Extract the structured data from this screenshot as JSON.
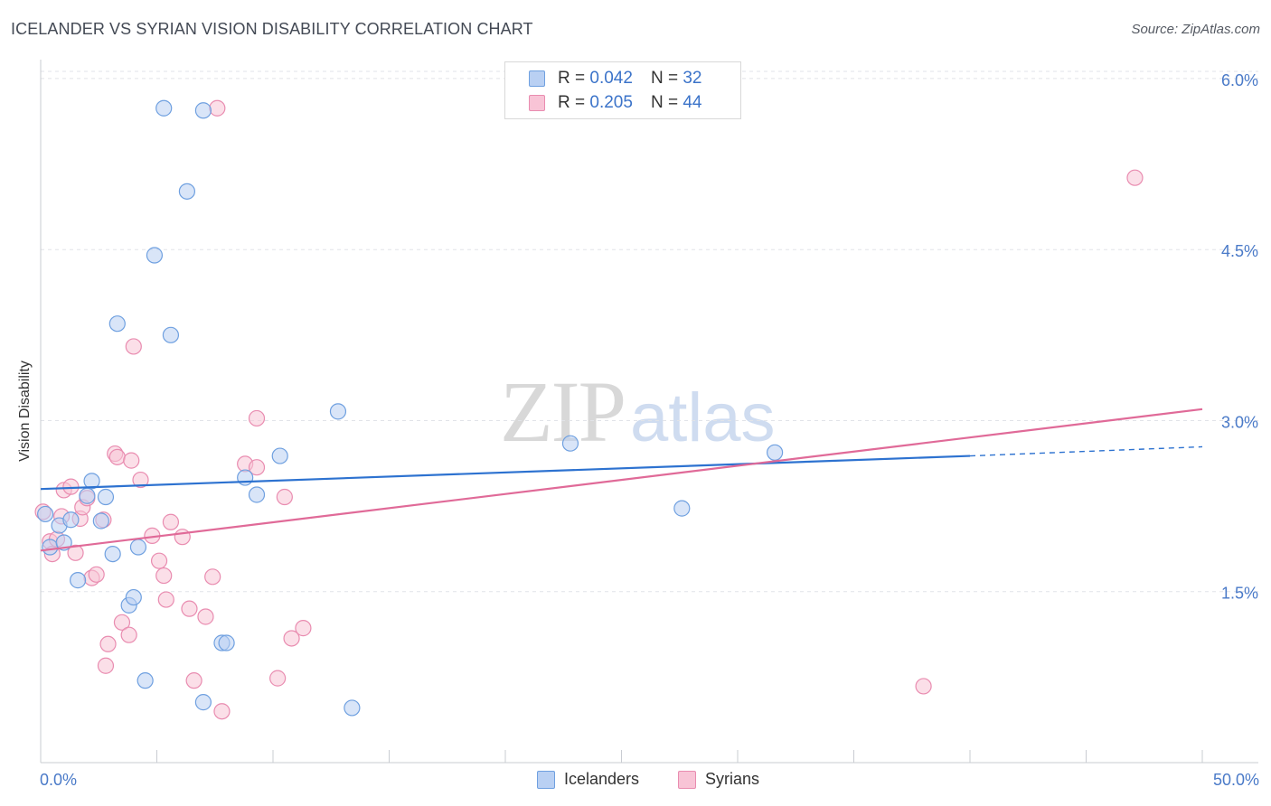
{
  "chart_data": {
    "type": "scatter",
    "title": "ICELANDER VS SYRIAN VISION DISABILITY CORRELATION CHART",
    "source": "Source: ZipAtlas.com",
    "xlabel": "",
    "ylabel": "Vision Disability",
    "xlim": [
      0,
      50
    ],
    "ylim": [
      0,
      6.15
    ],
    "x_tick_labels": [
      "0.0%",
      "50.0%"
    ],
    "y_ticks": [
      1.5,
      3.0,
      4.5,
      6.0
    ],
    "y_tick_labels": [
      "1.5%",
      "3.0%",
      "4.5%",
      "6.0%"
    ],
    "grid": true,
    "watermark": {
      "zip": "ZIP",
      "atlas": "atlas"
    },
    "legend": {
      "rows": [
        {
          "r_label": "R =",
          "r_value": "0.042",
          "n_label": "N =",
          "n_value": "32"
        },
        {
          "r_label": "R =",
          "r_value": "0.205",
          "n_label": "N =",
          "n_value": "44"
        }
      ]
    },
    "series": [
      {
        "name": "Icelanders",
        "color": "#6fa0e0",
        "fill": "#b9d0f3",
        "line_color": "#2d72d0",
        "trend": {
          "x0": 0,
          "y0": 2.4,
          "x1": 40,
          "y1": 2.69,
          "dashed_to_x": 50,
          "dashed_to_y": 2.77
        },
        "points": [
          [
            0.2,
            2.18
          ],
          [
            0.4,
            1.89
          ],
          [
            0.8,
            2.08
          ],
          [
            1.0,
            1.93
          ],
          [
            1.3,
            2.13
          ],
          [
            1.6,
            1.6
          ],
          [
            2.0,
            2.34
          ],
          [
            2.2,
            2.47
          ],
          [
            2.6,
            2.12
          ],
          [
            2.8,
            2.33
          ],
          [
            3.1,
            1.83
          ],
          [
            3.3,
            3.85
          ],
          [
            3.8,
            1.38
          ],
          [
            4.0,
            1.45
          ],
          [
            4.2,
            1.89
          ],
          [
            4.5,
            0.72
          ],
          [
            4.9,
            4.45
          ],
          [
            5.3,
            5.74
          ],
          [
            5.6,
            3.75
          ],
          [
            6.3,
            5.01
          ],
          [
            7.0,
            5.72
          ],
          [
            7.0,
            0.53
          ],
          [
            7.8,
            1.05
          ],
          [
            8.0,
            1.05
          ],
          [
            8.8,
            2.5
          ],
          [
            9.3,
            2.35
          ],
          [
            10.3,
            2.69
          ],
          [
            12.8,
            3.08
          ],
          [
            13.4,
            0.48
          ],
          [
            22.8,
            2.8
          ],
          [
            27.6,
            2.23
          ],
          [
            31.6,
            2.72
          ]
        ]
      },
      {
        "name": "Syrians",
        "color": "#e98cb0",
        "fill": "#f8c4d6",
        "line_color": "#e06a98",
        "trend": {
          "x0": 0,
          "y0": 1.86,
          "x1": 50,
          "y1": 3.1
        },
        "points": [
          [
            0.1,
            2.2
          ],
          [
            0.4,
            1.94
          ],
          [
            0.5,
            1.83
          ],
          [
            0.7,
            1.96
          ],
          [
            0.9,
            2.16
          ],
          [
            1.0,
            2.39
          ],
          [
            1.3,
            2.42
          ],
          [
            1.5,
            1.84
          ],
          [
            1.7,
            2.14
          ],
          [
            1.8,
            2.24
          ],
          [
            2.0,
            2.32
          ],
          [
            2.2,
            1.62
          ],
          [
            2.4,
            1.65
          ],
          [
            2.7,
            2.13
          ],
          [
            2.8,
            0.85
          ],
          [
            2.9,
            1.04
          ],
          [
            3.2,
            2.71
          ],
          [
            3.3,
            2.68
          ],
          [
            3.5,
            1.23
          ],
          [
            3.8,
            1.12
          ],
          [
            3.9,
            2.65
          ],
          [
            4.0,
            3.65
          ],
          [
            4.3,
            2.48
          ],
          [
            4.8,
            1.99
          ],
          [
            5.1,
            1.77
          ],
          [
            5.3,
            1.64
          ],
          [
            5.4,
            1.43
          ],
          [
            5.6,
            2.11
          ],
          [
            6.1,
            1.98
          ],
          [
            6.4,
            1.35
          ],
          [
            6.6,
            0.72
          ],
          [
            7.1,
            1.28
          ],
          [
            7.4,
            1.63
          ],
          [
            7.6,
            5.74
          ],
          [
            7.8,
            0.45
          ],
          [
            8.8,
            2.62
          ],
          [
            9.3,
            2.59
          ],
          [
            9.3,
            3.02
          ],
          [
            10.2,
            0.74
          ],
          [
            10.5,
            2.33
          ],
          [
            10.8,
            1.09
          ],
          [
            11.3,
            1.18
          ],
          [
            38.0,
            0.67
          ],
          [
            47.1,
            5.13
          ]
        ]
      }
    ]
  }
}
